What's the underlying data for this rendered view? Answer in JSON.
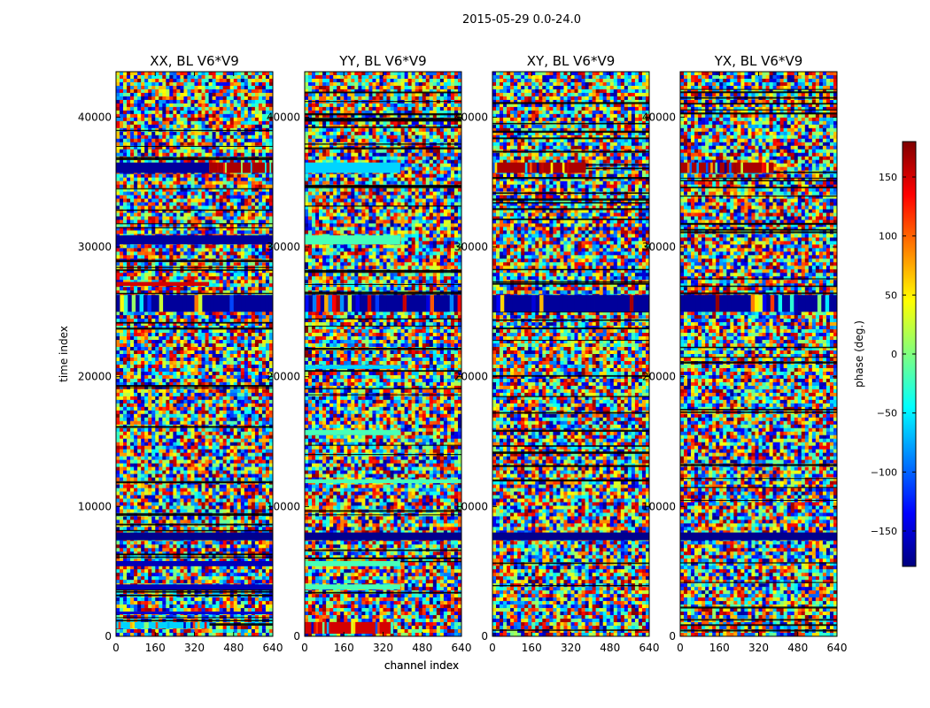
{
  "figure": {
    "suptitle": "2015-05-29 0.0-24.0"
  },
  "chart_data": [
    {
      "type": "heatmap",
      "title": "XX, BL V6*V9",
      "xlabel": "channel index",
      "ylabel": "time index",
      "xlim": [
        0,
        640
      ],
      "ylim": [
        0,
        43500
      ],
      "xticks": [
        0,
        160,
        320,
        480,
        640
      ],
      "yticks": [
        0,
        10000,
        20000,
        30000,
        40000
      ],
      "value_range": [
        -180,
        180
      ],
      "bands": [
        {
          "y0": 35700,
          "y1": 36500,
          "value": -170,
          "x1": 380
        },
        {
          "y0": 35700,
          "y1": 36500,
          "value": 165,
          "x0": 380,
          "x1": 640,
          "mix": true
        },
        {
          "y0": 30200,
          "y1": 30900,
          "value": -170
        },
        {
          "y0": 27000,
          "y1": 27300,
          "value": 150,
          "x1": 380
        },
        {
          "y0": 25000,
          "y1": 26300,
          "value": -170,
          "mix": true
        },
        {
          "y0": 7400,
          "y1": 8000,
          "value": -175
        },
        {
          "y0": 5400,
          "y1": 5800,
          "value": -160
        },
        {
          "y0": 3600,
          "y1": 4000,
          "value": -160
        },
        {
          "y0": 1700,
          "y1": 1900,
          "value": -150
        },
        {
          "y0": 600,
          "y1": 1100,
          "value": -60,
          "x1": 380,
          "mix": true
        }
      ]
    },
    {
      "type": "heatmap",
      "title": "YY, BL V6*V9",
      "xlabel": "channel index",
      "ylabel": "",
      "xlim": [
        0,
        640
      ],
      "ylim": [
        0,
        43500
      ],
      "xticks": [
        0,
        160,
        320,
        480,
        640
      ],
      "yticks": [
        0,
        10000,
        20000,
        30000,
        40000
      ],
      "value_range": [
        -180,
        180
      ],
      "bands": [
        {
          "y0": 35700,
          "y1": 36500,
          "value": -60,
          "x1": 390
        },
        {
          "y0": 30200,
          "y1": 30900,
          "value": -20,
          "x1": 390
        },
        {
          "y0": 25000,
          "y1": 26300,
          "value": -170,
          "mix": true
        },
        {
          "y0": 20600,
          "y1": 20900,
          "value": -60,
          "x1": 390
        },
        {
          "y0": 15500,
          "y1": 15900,
          "value": -20,
          "x1": 390
        },
        {
          "y0": 11800,
          "y1": 12100,
          "value": -20
        },
        {
          "y0": 7400,
          "y1": 8000,
          "value": -175
        },
        {
          "y0": 5400,
          "y1": 5800,
          "value": -20,
          "x1": 390
        },
        {
          "y0": 3600,
          "y1": 4000,
          "value": -20,
          "x1": 390
        },
        {
          "y0": 200,
          "y1": 1100,
          "value": 150,
          "x1": 360,
          "mix": true
        }
      ]
    },
    {
      "type": "heatmap",
      "title": "XY, BL V6*V9",
      "xlabel": "",
      "ylabel": "",
      "xlim": [
        0,
        640
      ],
      "ylim": [
        0,
        43500
      ],
      "xticks": [
        0,
        160,
        320,
        480,
        640
      ],
      "yticks": [
        0,
        10000,
        20000,
        30000,
        40000
      ],
      "value_range": [
        -180,
        180
      ],
      "bands": [
        {
          "y0": 35700,
          "y1": 36500,
          "value": 165,
          "x1": 380,
          "mix": true
        },
        {
          "y0": 25000,
          "y1": 26300,
          "value": -170,
          "mix": true
        },
        {
          "y0": 7400,
          "y1": 8000,
          "value": -175
        }
      ]
    },
    {
      "type": "heatmap",
      "title": "YX, BL V6*V9",
      "xlabel": "",
      "ylabel": "",
      "xlim": [
        0,
        640
      ],
      "ylim": [
        0,
        43500
      ],
      "xticks": [
        0,
        160,
        320,
        480,
        640
      ],
      "yticks": [
        0,
        10000,
        20000,
        30000,
        40000
      ],
      "value_range": [
        -180,
        180
      ],
      "bands": [
        {
          "y0": 35700,
          "y1": 36500,
          "value": 165,
          "x1": 380,
          "mix": true
        },
        {
          "y0": 25000,
          "y1": 26300,
          "value": -170,
          "mix": true
        },
        {
          "y0": 7400,
          "y1": 8000,
          "value": -175
        }
      ]
    }
  ],
  "colorbar": {
    "label": "phase (deg.)",
    "range": [
      -180,
      180
    ],
    "ticks": [
      150,
      100,
      50,
      0,
      -50,
      -100,
      -150
    ],
    "colormap": "jet"
  },
  "colors": {
    "jet": [
      "#00007f",
      "#0000ff",
      "#007fff",
      "#00ffff",
      "#7fff7f",
      "#ffff00",
      "#ff7f00",
      "#ff0000",
      "#7f0000"
    ],
    "grid_lines": "#000000"
  }
}
